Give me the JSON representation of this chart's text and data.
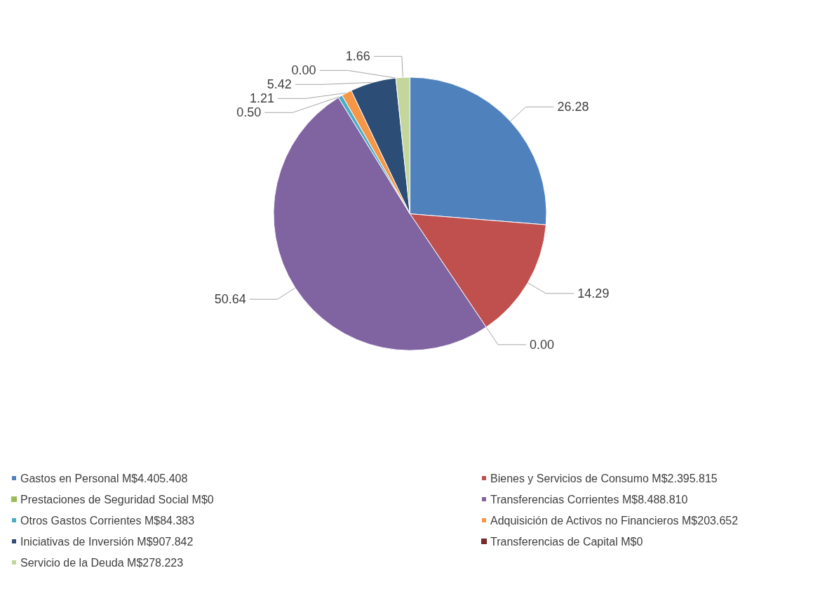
{
  "chart_data": {
    "type": "pie",
    "categories": [
      "Gastos en Personal M$4.405.408",
      "Bienes y Servicios de Consumo M$2.395.815",
      "Prestaciones de Seguridad Social M$0",
      "Transferencias Corrientes M$8.488.810",
      "Otros Gastos Corrientes M$84.383",
      "Adquisición de Activos no Financieros M$203.652",
      "Iniciativas de Inversión M$907.842",
      "Transferencias de Capital M$0",
      "Servicio de la Deuda M$278.223"
    ],
    "values": [
      26.28,
      14.29,
      0,
      50.64,
      0.5,
      1.21,
      5.42,
      0,
      1.66
    ],
    "value_labels": [
      "26.28",
      "14.29",
      "0.00",
      "50.64",
      "0.50",
      "1.21",
      "5.42",
      "0.00",
      "1.66"
    ],
    "colors": [
      "#4f81bd",
      "#c0504d",
      "#9bbb59",
      "#8064a2",
      "#4bacc6",
      "#f79646",
      "#2c4d75",
      "#772c2a",
      "#c3d69b"
    ],
    "legend": "bottom"
  }
}
